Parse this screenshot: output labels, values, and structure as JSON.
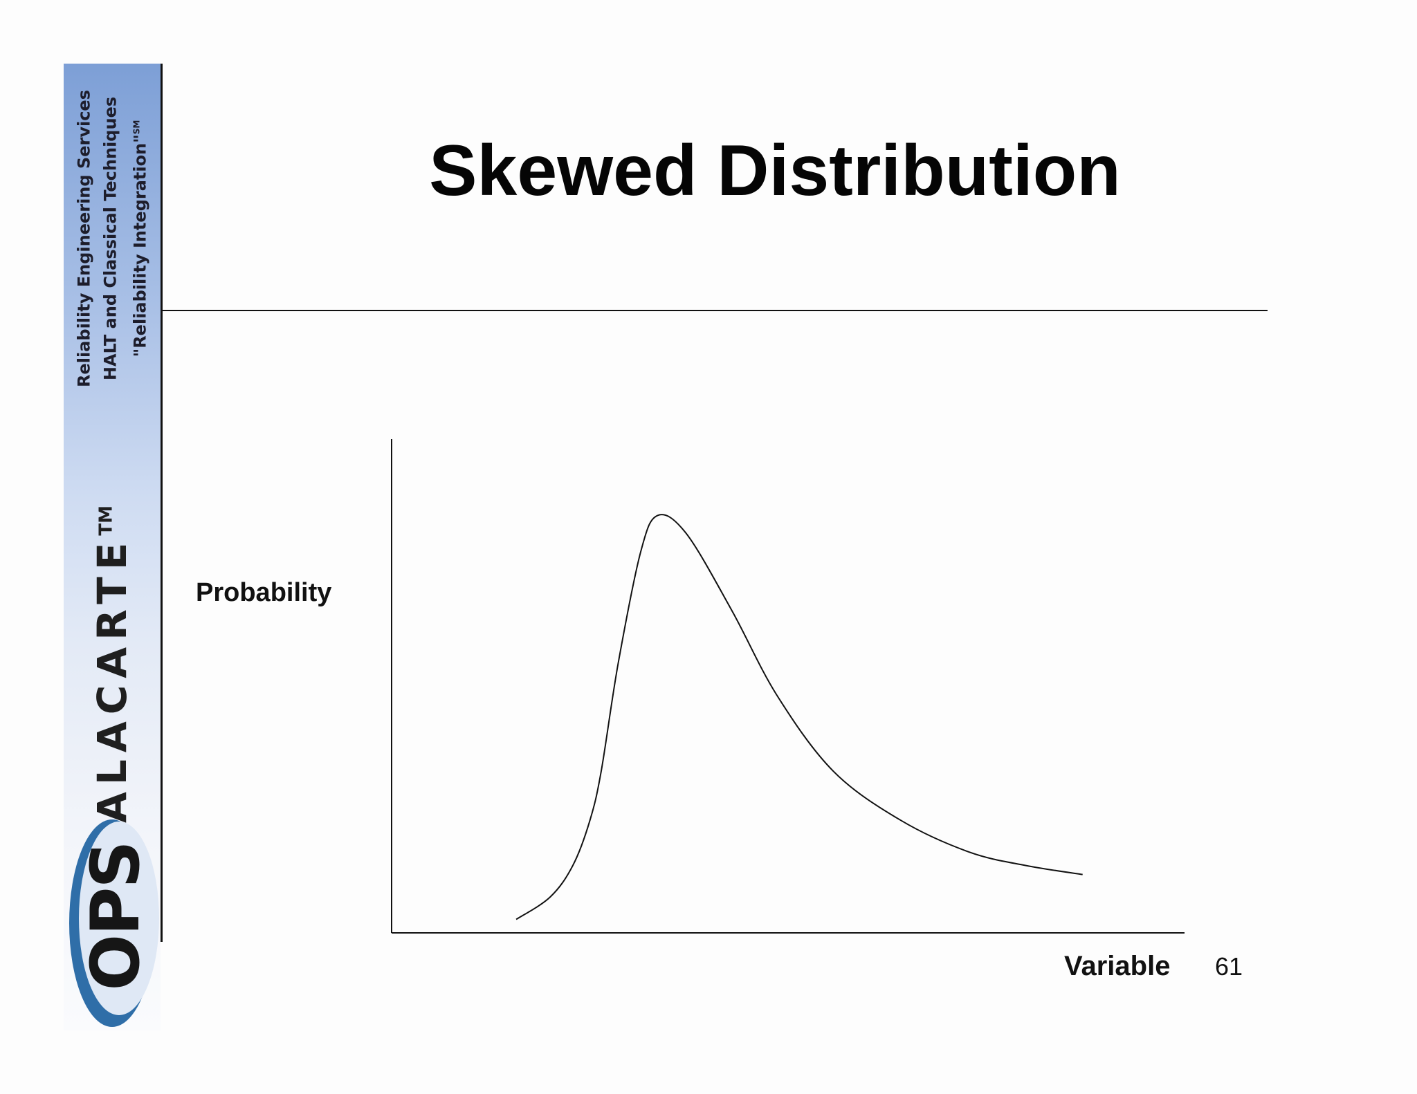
{
  "sidebar": {
    "tagline_lines": [
      "Reliability Engineering Services",
      "HALT and Classical Techniques",
      "\"Reliability Integration\""
    ],
    "tagline_mark": "SM",
    "brand_name": "ALACARTE",
    "brand_mark": "TM",
    "logo_text": "OPS",
    "colors": {
      "gradient_top": "#7d9fd6",
      "gradient_bottom": "#fafbfd",
      "logo_swoosh": "#2f6ea8",
      "logo_disc": "#dfe8f5"
    }
  },
  "slide": {
    "title": "Skewed Distribution",
    "page_number": "61"
  },
  "chart_data": {
    "type": "line",
    "title": "",
    "xlabel": "Variable",
    "ylabel": "Probability",
    "grid": false,
    "legend": "none",
    "x_ticks": [],
    "y_ticks": [],
    "series": [
      {
        "values_note": "",
        "x": [
          0.0,
          0.06,
          0.1,
          0.13,
          0.15,
          0.18,
          0.22,
          0.25,
          0.3,
          0.38,
          0.46,
          0.56,
          0.68,
          0.8,
          0.9,
          1.0
        ],
        "y": [
          0.03,
          0.08,
          0.15,
          0.25,
          0.36,
          0.6,
          0.85,
          0.93,
          0.89,
          0.72,
          0.53,
          0.36,
          0.25,
          0.18,
          0.15,
          0.13
        ]
      }
    ],
    "xlim": [
      -0.22,
      1.18
    ],
    "ylim": [
      0,
      1.1
    ]
  }
}
